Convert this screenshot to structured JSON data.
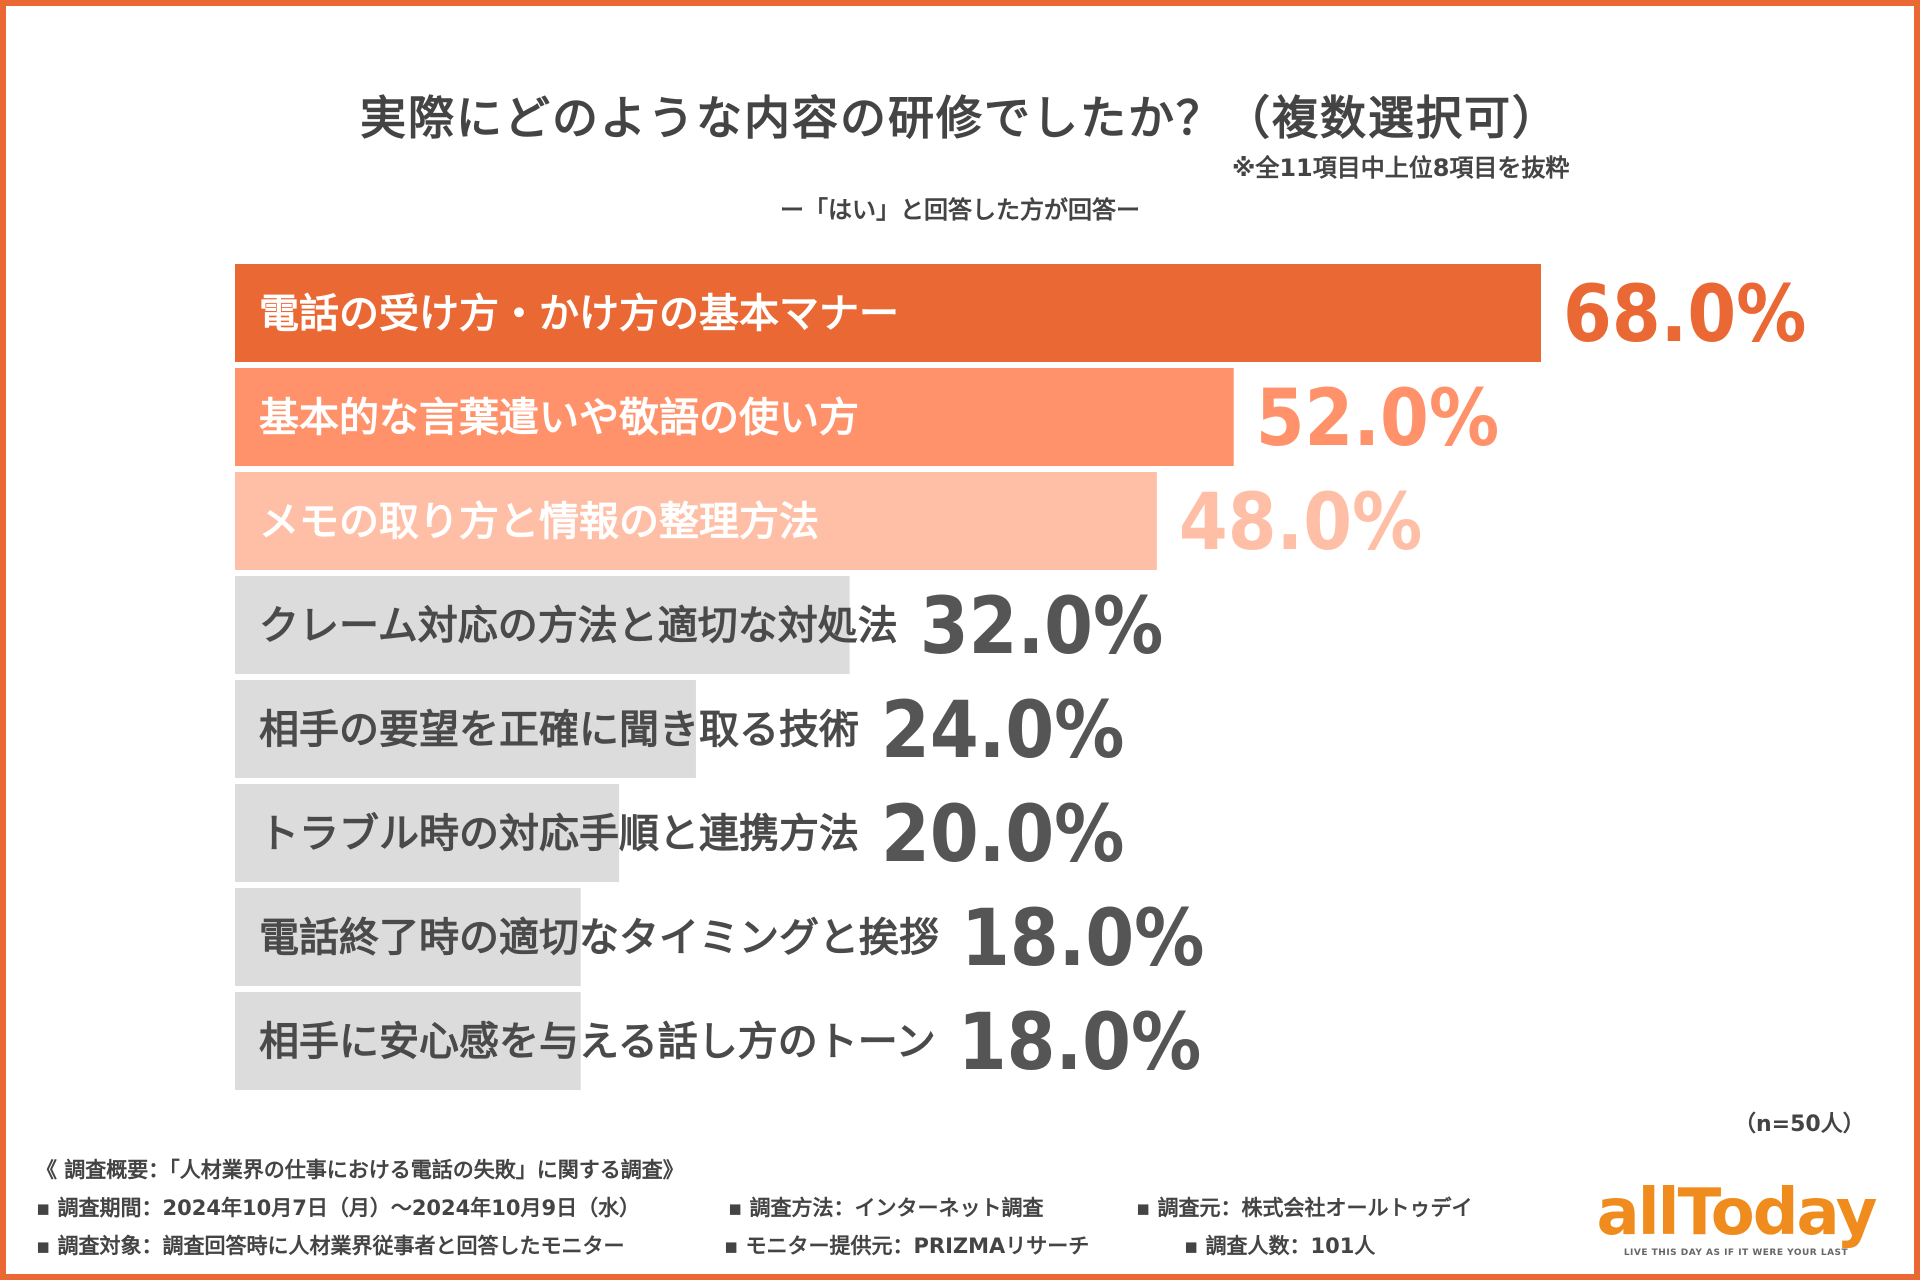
{
  "title": "実際にどのような内容の研修でしたか？（複数選択可）",
  "note": "※全11項目中上位8項目を抜粋",
  "subtitle": "ー「はい」と回答した方が回答ー",
  "sample_size": "（n=50人）",
  "colors": {
    "frame": "#e96834",
    "bar_top1": "#e96834",
    "bar_top2": "#ff926a",
    "bar_top3": "#ffbfa6",
    "bar_gray": "#dcdcdc",
    "label_dark": "#4a4a4a",
    "value_dark": "#555555"
  },
  "chart_data": {
    "type": "bar",
    "orientation": "horizontal",
    "categories": [
      "電話の受け方・かけ方の基本マナー",
      "基本的な言葉遣いや敬語の使い方",
      "メモの取り方と情報の整理方法",
      "クレーム対応の方法と適切な対処法",
      "相手の要望を正確に聞き取る技術",
      "トラブル時の対応手順と連携方法",
      "電話終了時の適切なタイミングと挨拶",
      "相手に安心感を与える話し方のトーン"
    ],
    "values": [
      68.0,
      52.0,
      48.0,
      32.0,
      24.0,
      20.0,
      18.0,
      18.0
    ],
    "value_labels": [
      "68.0%",
      "52.0%",
      "48.0%",
      "32.0%",
      "24.0%",
      "20.0%",
      "18.0%",
      "18.0%"
    ],
    "unit": "%",
    "xlim": [
      0,
      100
    ],
    "grid": false
  },
  "footer": {
    "heading": "《 調査概要：「人材業界の仕事における電話の失敗」に関する調査》",
    "period": "▪ 調査期間：2024年10月7日（月）～2024年10月9日（水）",
    "method": "▪ 調査方法：インターネット調査",
    "source": "▪ 調査元：株式会社オールトゥデイ",
    "target": "▪ 調査対象：調査回答時に人材業界従事者と回答したモニター",
    "provider": "▪ モニター提供元：PRIZMAリサーチ",
    "count": "▪ 調査人数：101人"
  },
  "logo": {
    "name": "allToday",
    "tagline": "LIVE THIS DAY AS IF IT WERE YOUR LAST"
  }
}
